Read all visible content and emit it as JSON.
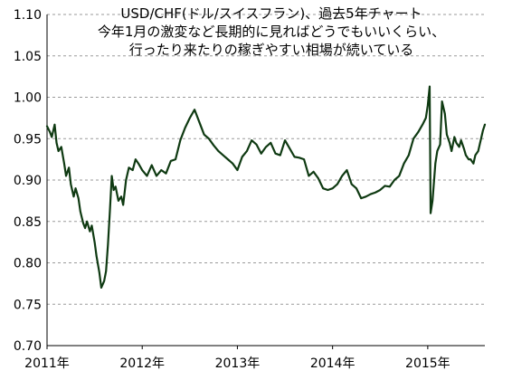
{
  "chart_data": {
    "type": "line",
    "title_lines": [
      "USD/CHF(ドル/スイスフラン)、過去5年チャート",
      "今年1月の激変など長期的に見ればどうでもいいくらい、",
      "行ったり来たりの稼ぎやすい相場が続いている"
    ],
    "xlabel": "",
    "ylabel": "",
    "ylim": [
      0.7,
      1.1
    ],
    "y_ticks": [
      "0.70",
      "0.75",
      "0.80",
      "0.85",
      "0.90",
      "0.95",
      "1.00",
      "1.05",
      "1.10"
    ],
    "x_ticks": [
      {
        "label": "2011年",
        "value": 2011.0
      },
      {
        "label": "2012年",
        "value": 2012.0
      },
      {
        "label": "2013年",
        "value": 2013.0
      },
      {
        "label": "2014年",
        "value": 2014.0
      },
      {
        "label": "2015年",
        "value": 2015.0
      }
    ],
    "xlim": [
      2011.0,
      2015.6
    ],
    "grid": "horizontal dashed",
    "line_color": "#0f3a12",
    "series": [
      {
        "x": [
          2011.0,
          2011.03,
          2011.05,
          2011.08,
          2011.1,
          2011.12,
          2011.15,
          2011.18,
          2011.2,
          2011.23,
          2011.25,
          2011.28,
          2011.3,
          2011.33,
          2011.35,
          2011.38,
          2011.4,
          2011.42,
          2011.45,
          2011.47,
          2011.5,
          2011.52,
          2011.55,
          2011.57,
          2011.6,
          2011.62,
          2011.64,
          2011.66,
          2011.68,
          2011.7,
          2011.72,
          2011.75,
          2011.78,
          2011.8,
          2011.83,
          2011.86,
          2011.9,
          2011.93,
          2011.96,
          2012.0,
          2012.05,
          2012.1,
          2012.15,
          2012.2,
          2012.25,
          2012.3,
          2012.35,
          2012.4,
          2012.45,
          2012.5,
          2012.55,
          2012.6,
          2012.65,
          2012.7,
          2012.75,
          2012.8,
          2012.85,
          2012.9,
          2012.95,
          2013.0,
          2013.05,
          2013.1,
          2013.15,
          2013.2,
          2013.25,
          2013.3,
          2013.35,
          2013.4,
          2013.45,
          2013.5,
          2013.55,
          2013.6,
          2013.65,
          2013.7,
          2013.75,
          2013.8,
          2013.85,
          2013.9,
          2013.95,
          2014.0,
          2014.05,
          2014.1,
          2014.15,
          2014.2,
          2014.25,
          2014.3,
          2014.35,
          2014.4,
          2014.45,
          2014.5,
          2014.55,
          2014.6,
          2014.65,
          2014.7,
          2014.75,
          2014.8,
          2014.85,
          2014.9,
          2014.95,
          2014.98,
          2015.0,
          2015.02,
          2015.03,
          2015.05,
          2015.08,
          2015.1,
          2015.13,
          2015.15,
          2015.18,
          2015.2,
          2015.23,
          2015.25,
          2015.28,
          2015.3,
          2015.33,
          2015.35,
          2015.38,
          2015.4,
          2015.43,
          2015.45,
          2015.48,
          2015.5,
          2015.53,
          2015.55,
          2015.58,
          2015.6
        ],
        "y": [
          0.965,
          0.958,
          0.952,
          0.967,
          0.945,
          0.935,
          0.94,
          0.92,
          0.905,
          0.915,
          0.895,
          0.88,
          0.89,
          0.878,
          0.862,
          0.848,
          0.842,
          0.85,
          0.838,
          0.845,
          0.825,
          0.808,
          0.788,
          0.77,
          0.778,
          0.79,
          0.822,
          0.862,
          0.905,
          0.888,
          0.892,
          0.875,
          0.88,
          0.87,
          0.9,
          0.915,
          0.912,
          0.925,
          0.92,
          0.912,
          0.905,
          0.918,
          0.905,
          0.912,
          0.908,
          0.923,
          0.925,
          0.948,
          0.963,
          0.975,
          0.985,
          0.97,
          0.955,
          0.95,
          0.942,
          0.935,
          0.93,
          0.925,
          0.92,
          0.912,
          0.928,
          0.935,
          0.948,
          0.943,
          0.932,
          0.94,
          0.945,
          0.932,
          0.93,
          0.948,
          0.938,
          0.928,
          0.927,
          0.925,
          0.905,
          0.91,
          0.902,
          0.89,
          0.888,
          0.89,
          0.895,
          0.905,
          0.912,
          0.895,
          0.89,
          0.878,
          0.88,
          0.883,
          0.885,
          0.888,
          0.893,
          0.892,
          0.9,
          0.905,
          0.92,
          0.93,
          0.95,
          0.958,
          0.968,
          0.975,
          0.99,
          1.013,
          0.86,
          0.875,
          0.92,
          0.935,
          0.943,
          0.995,
          0.98,
          0.955,
          0.945,
          0.935,
          0.952,
          0.945,
          0.94,
          0.948,
          0.938,
          0.93,
          0.925,
          0.925,
          0.92,
          0.93,
          0.935,
          0.945,
          0.96,
          0.967
        ]
      }
    ]
  }
}
